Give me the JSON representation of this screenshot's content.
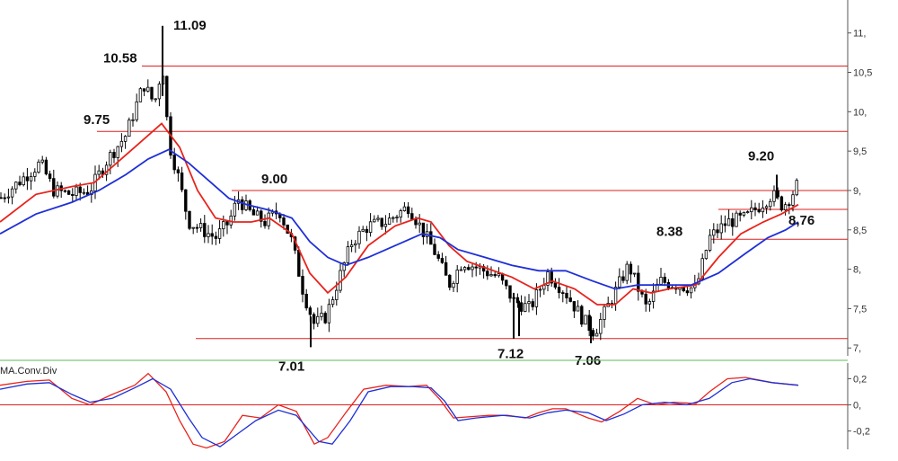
{
  "chart_data": [
    {
      "type": "candlestick",
      "panel": "price",
      "y_ticks": [
        "7,",
        "7,5",
        "8,",
        "8,5",
        "9,",
        "9,5",
        "10,",
        "10,5",
        "11,"
      ],
      "y_tick_values": [
        7.0,
        7.5,
        8.0,
        8.5,
        9.0,
        9.5,
        10.0,
        10.5,
        11.0
      ],
      "ylim": [
        6.9,
        11.35
      ],
      "horizontal_levels": [
        10.58,
        9.75,
        9.0,
        8.76,
        8.38,
        7.12
      ],
      "annotations": [
        {
          "text": "11.09",
          "x": 181,
          "y": 11.09
        },
        {
          "text": "10.58",
          "x": 160,
          "y": 10.58
        },
        {
          "text": "9.75",
          "x": 131,
          "y": 9.75
        },
        {
          "text": "9.00",
          "x": 311,
          "y": 9.0
        },
        {
          "text": "9.20",
          "x": 853,
          "y": 9.2
        },
        {
          "text": "8.38",
          "x": 771,
          "y": 8.38
        },
        {
          "text": "8,76",
          "x": 872,
          "y": 8.76
        },
        {
          "text": "7.01",
          "x": 346,
          "y": 7.01
        },
        {
          "text": "7.12",
          "x": 572,
          "y": 7.12
        },
        {
          "text": "7.06",
          "x": 658,
          "y": 7.06
        }
      ],
      "x_range": [
        0,
        889
      ],
      "price_path": [
        [
          0,
          8.9
        ],
        [
          20,
          9.1
        ],
        [
          45,
          9.35
        ],
        [
          60,
          9.0
        ],
        [
          80,
          8.95
        ],
        [
          100,
          9.0
        ],
        [
          120,
          9.4
        ],
        [
          140,
          9.7
        ],
        [
          160,
          10.35
        ],
        [
          172,
          10.1
        ],
        [
          181,
          10.6
        ],
        [
          188,
          9.6
        ],
        [
          198,
          9.2
        ],
        [
          210,
          8.6
        ],
        [
          225,
          8.5
        ],
        [
          240,
          8.4
        ],
        [
          255,
          8.6
        ],
        [
          265,
          8.9
        ],
        [
          280,
          8.7
        ],
        [
          295,
          8.6
        ],
        [
          311,
          8.75
        ],
        [
          325,
          8.35
        ],
        [
          338,
          7.7
        ],
        [
          350,
          7.3
        ],
        [
          363,
          7.4
        ],
        [
          378,
          7.9
        ],
        [
          392,
          8.35
        ],
        [
          410,
          8.55
        ],
        [
          430,
          8.6
        ],
        [
          455,
          8.8
        ],
        [
          470,
          8.5
        ],
        [
          485,
          8.2
        ],
        [
          500,
          7.8
        ],
        [
          515,
          8.1
        ],
        [
          535,
          8.0
        ],
        [
          555,
          7.9
        ],
        [
          572,
          7.6
        ],
        [
          590,
          7.5
        ],
        [
          610,
          7.95
        ],
        [
          630,
          7.7
        ],
        [
          650,
          7.35
        ],
        [
          662,
          7.2
        ],
        [
          680,
          7.6
        ],
        [
          700,
          8.05
        ],
        [
          720,
          7.5
        ],
        [
          735,
          7.85
        ],
        [
          755,
          7.8
        ],
        [
          775,
          7.75
        ],
        [
          790,
          8.4
        ],
        [
          810,
          8.6
        ],
        [
          830,
          8.65
        ],
        [
          845,
          8.8
        ],
        [
          860,
          8.95
        ],
        [
          872,
          8.8
        ],
        [
          882,
          8.95
        ],
        [
          889,
          9.1
        ]
      ],
      "series": [
        {
          "color": "#e8231c",
          "values": [
            [
              0,
              8.6
            ],
            [
              40,
              8.95
            ],
            [
              80,
              9.05
            ],
            [
              105,
              9.1
            ],
            [
              130,
              9.35
            ],
            [
              155,
              9.6
            ],
            [
              180,
              9.85
            ],
            [
              200,
              9.55
            ],
            [
              220,
              9.0
            ],
            [
              240,
              8.65
            ],
            [
              260,
              8.6
            ],
            [
              280,
              8.6
            ],
            [
              300,
              8.65
            ],
            [
              325,
              8.45
            ],
            [
              345,
              7.95
            ],
            [
              365,
              7.7
            ],
            [
              385,
              7.9
            ],
            [
              410,
              8.3
            ],
            [
              440,
              8.55
            ],
            [
              465,
              8.65
            ],
            [
              480,
              8.6
            ],
            [
              500,
              8.3
            ],
            [
              520,
              8.1
            ],
            [
              545,
              8.0
            ],
            [
              570,
              7.9
            ],
            [
              595,
              7.75
            ],
            [
              615,
              7.85
            ],
            [
              640,
              7.75
            ],
            [
              665,
              7.55
            ],
            [
              685,
              7.55
            ],
            [
              705,
              7.75
            ],
            [
              725,
              7.7
            ],
            [
              745,
              7.75
            ],
            [
              775,
              7.8
            ],
            [
              800,
              8.15
            ],
            [
              825,
              8.45
            ],
            [
              850,
              8.6
            ],
            [
              870,
              8.7
            ],
            [
              889,
              8.82
            ]
          ]
        },
        {
          "color": "#1f2fd6",
          "values": [
            [
              0,
              8.45
            ],
            [
              40,
              8.7
            ],
            [
              80,
              8.85
            ],
            [
              110,
              9.0
            ],
            [
              140,
              9.2
            ],
            [
              165,
              9.4
            ],
            [
              188,
              9.52
            ],
            [
              210,
              9.35
            ],
            [
              235,
              9.1
            ],
            [
              255,
              8.9
            ],
            [
              275,
              8.82
            ],
            [
              300,
              8.75
            ],
            [
              325,
              8.65
            ],
            [
              345,
              8.35
            ],
            [
              365,
              8.15
            ],
            [
              385,
              8.05
            ],
            [
              410,
              8.15
            ],
            [
              440,
              8.3
            ],
            [
              470,
              8.45
            ],
            [
              490,
              8.4
            ],
            [
              510,
              8.25
            ],
            [
              540,
              8.15
            ],
            [
              570,
              8.05
            ],
            [
              600,
              7.98
            ],
            [
              630,
              7.98
            ],
            [
              660,
              7.85
            ],
            [
              685,
              7.75
            ],
            [
              710,
              7.8
            ],
            [
              735,
              7.8
            ],
            [
              770,
              7.8
            ],
            [
              800,
              7.95
            ],
            [
              830,
              8.2
            ],
            [
              855,
              8.4
            ],
            [
              875,
              8.5
            ],
            [
              889,
              8.6
            ]
          ]
        }
      ]
    },
    {
      "type": "line",
      "panel": "indicator",
      "title": "MA.Conv.Div",
      "y_ticks": [
        "0,2",
        "0,",
        "-0,2"
      ],
      "y_tick_values": [
        0.2,
        0.0,
        -0.2
      ],
      "ylim": [
        -0.34,
        0.32
      ],
      "zero_line": 0.0,
      "series": [
        {
          "color": "#e8231c",
          "values": [
            [
              0,
              0.15
            ],
            [
              30,
              0.18
            ],
            [
              55,
              0.19
            ],
            [
              80,
              0.05
            ],
            [
              100,
              0.0
            ],
            [
              125,
              0.08
            ],
            [
              150,
              0.15
            ],
            [
              165,
              0.24
            ],
            [
              185,
              0.1
            ],
            [
              200,
              -0.12
            ],
            [
              215,
              -0.3
            ],
            [
              230,
              -0.33
            ],
            [
              250,
              -0.28
            ],
            [
              270,
              -0.08
            ],
            [
              290,
              -0.1
            ],
            [
              310,
              0.0
            ],
            [
              330,
              -0.05
            ],
            [
              350,
              -0.3
            ],
            [
              365,
              -0.25
            ],
            [
              385,
              -0.06
            ],
            [
              405,
              0.12
            ],
            [
              430,
              0.15
            ],
            [
              455,
              0.14
            ],
            [
              475,
              0.15
            ],
            [
              490,
              0.04
            ],
            [
              505,
              -0.1
            ],
            [
              525,
              -0.09
            ],
            [
              545,
              -0.08
            ],
            [
              565,
              -0.08
            ],
            [
              585,
              -0.1
            ],
            [
              600,
              -0.06
            ],
            [
              615,
              -0.03
            ],
            [
              630,
              -0.03
            ],
            [
              655,
              -0.1
            ],
            [
              670,
              -0.13
            ],
            [
              690,
              -0.05
            ],
            [
              710,
              0.05
            ],
            [
              730,
              0.0
            ],
            [
              750,
              0.02
            ],
            [
              775,
              0.01
            ],
            [
              790,
              0.1
            ],
            [
              810,
              0.2
            ],
            [
              830,
              0.21
            ],
            [
              860,
              0.17
            ],
            [
              889,
              0.15
            ]
          ]
        },
        {
          "color": "#1f2fd6",
          "values": [
            [
              0,
              0.12
            ],
            [
              30,
              0.16
            ],
            [
              55,
              0.17
            ],
            [
              80,
              0.08
            ],
            [
              100,
              0.02
            ],
            [
              125,
              0.05
            ],
            [
              150,
              0.13
            ],
            [
              170,
              0.2
            ],
            [
              190,
              0.12
            ],
            [
              210,
              -0.1
            ],
            [
              225,
              -0.25
            ],
            [
              245,
              -0.32
            ],
            [
              265,
              -0.22
            ],
            [
              285,
              -0.12
            ],
            [
              310,
              -0.04
            ],
            [
              330,
              -0.08
            ],
            [
              355,
              -0.28
            ],
            [
              370,
              -0.3
            ],
            [
              390,
              -0.12
            ],
            [
              410,
              0.1
            ],
            [
              435,
              0.14
            ],
            [
              460,
              0.14
            ],
            [
              480,
              0.13
            ],
            [
              495,
              0.03
            ],
            [
              510,
              -0.12
            ],
            [
              530,
              -0.1
            ],
            [
              560,
              -0.08
            ],
            [
              590,
              -0.1
            ],
            [
              610,
              -0.06
            ],
            [
              630,
              -0.04
            ],
            [
              655,
              -0.06
            ],
            [
              675,
              -0.12
            ],
            [
              695,
              -0.07
            ],
            [
              715,
              0.0
            ],
            [
              740,
              0.02
            ],
            [
              765,
              0.0
            ],
            [
              790,
              0.05
            ],
            [
              815,
              0.17
            ],
            [
              835,
              0.2
            ],
            [
              860,
              0.17
            ],
            [
              889,
              0.15
            ]
          ]
        }
      ]
    }
  ],
  "colors": {
    "hline": "#e01e1e",
    "candle": "#000000",
    "panel_separator": "#5cb85c",
    "axis": "#555555"
  }
}
